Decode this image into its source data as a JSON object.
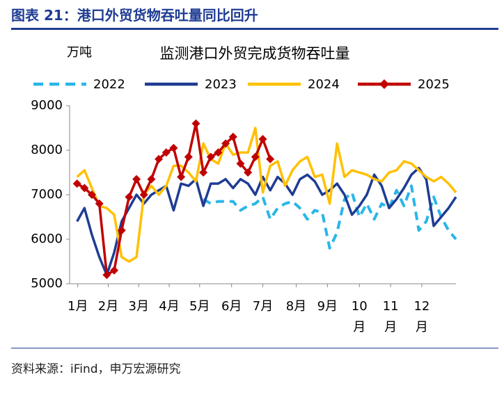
{
  "header": {
    "title": "图表 21：港口外贸货物吞吐量同比回升"
  },
  "chart_data": {
    "type": "line",
    "title": "监测港口外贸完成货物吞吐量",
    "y_unit": "万吨",
    "x": [
      1,
      2,
      3,
      4,
      5,
      6,
      7,
      8,
      9,
      10,
      11,
      12,
      13,
      14,
      15,
      16,
      17,
      18,
      19,
      20,
      21,
      22,
      23,
      24,
      25,
      26,
      27,
      28,
      29,
      30,
      31,
      32,
      33,
      34,
      35,
      36,
      37,
      38,
      39,
      40,
      41,
      42,
      43,
      44,
      45,
      46,
      47,
      48,
      49,
      50,
      51,
      52
    ],
    "xlim": [
      0,
      52
    ],
    "xticks": [
      {
        "value": 1.1,
        "label": "1月"
      },
      {
        "value": 5.2,
        "label": "2月"
      },
      {
        "value": 9.3,
        "label": "3月"
      },
      {
        "value": 13.4,
        "label": "4月"
      },
      {
        "value": 17.5,
        "label": "5月"
      },
      {
        "value": 21.8,
        "label": "6月"
      },
      {
        "value": 26,
        "label": "7月"
      },
      {
        "value": 30.5,
        "label": "8月"
      },
      {
        "value": 34.7,
        "label": "9月"
      },
      {
        "value": 39,
        "label": "10月"
      },
      {
        "value": 43.2,
        "label": "11月"
      },
      {
        "value": 47.4,
        "label": "12月"
      }
    ],
    "ylim": [
      5000,
      9000
    ],
    "yticks": [
      5000,
      6000,
      7000,
      8000,
      9000
    ],
    "grid": false,
    "series": [
      {
        "name": "2022",
        "color": "#29b6e8",
        "dashed": true,
        "values": [
          null,
          null,
          null,
          null,
          null,
          null,
          null,
          null,
          null,
          null,
          null,
          null,
          null,
          null,
          null,
          null,
          null,
          6900,
          6800,
          6850,
          6850,
          6850,
          6650,
          6750,
          6800,
          6950,
          6450,
          6700,
          6800,
          6850,
          6700,
          6450,
          6650,
          6600,
          5800,
          6150,
          6900,
          7050,
          6500,
          6800,
          6450,
          6800,
          6700,
          7100,
          6750,
          7200,
          6200,
          6400,
          6950,
          6500,
          6200,
          6000
        ]
      },
      {
        "name": "2023",
        "color": "#1f3c93",
        "values": [
          6400,
          6700,
          6100,
          5600,
          5200,
          5700,
          6400,
          6700,
          7000,
          6800,
          7000,
          7100,
          7200,
          6650,
          7250,
          7200,
          7350,
          6750,
          7250,
          7250,
          7350,
          7150,
          7350,
          7250,
          7000,
          7400,
          7100,
          7400,
          7250,
          7000,
          7350,
          7450,
          7300,
          7000,
          7100,
          7250,
          7000,
          6550,
          6750,
          7000,
          7450,
          7200,
          6700,
          6900,
          7150,
          7450,
          7600,
          7350,
          6300,
          6500,
          6700,
          6950
        ]
      },
      {
        "name": "2024",
        "color": "#ffc000",
        "values": [
          7400,
          7550,
          7150,
          6750,
          6700,
          6550,
          5600,
          5500,
          5600,
          7000,
          7200,
          7000,
          7200,
          7650,
          7650,
          7500,
          7300,
          8150,
          7800,
          7700,
          8150,
          7900,
          7950,
          7950,
          8500,
          7050,
          7650,
          7750,
          7200,
          7550,
          7750,
          7850,
          7400,
          7450,
          6800,
          8150,
          7400,
          7550,
          7500,
          7450,
          7350,
          7300,
          7500,
          7550,
          7750,
          7700,
          7550,
          7400,
          7300,
          7400,
          7250,
          7050
        ]
      },
      {
        "name": "2025",
        "color": "#c00000",
        "marker": "diamond",
        "values": [
          7250,
          7150,
          7000,
          6800,
          5200,
          5300,
          6200,
          6950,
          7350,
          7000,
          7350,
          7800,
          7950,
          8050,
          7400,
          7850,
          8600,
          7500,
          7850,
          7950,
          8150,
          8300,
          7700,
          7500,
          7850,
          8250,
          7800,
          null,
          null,
          null,
          null,
          null,
          null,
          null,
          null,
          null,
          null,
          null,
          null,
          null,
          null,
          null,
          null,
          null,
          null,
          null,
          null,
          null,
          null,
          null,
          null,
          null
        ]
      }
    ]
  },
  "source": "资料来源：iFind，申万宏源研究"
}
